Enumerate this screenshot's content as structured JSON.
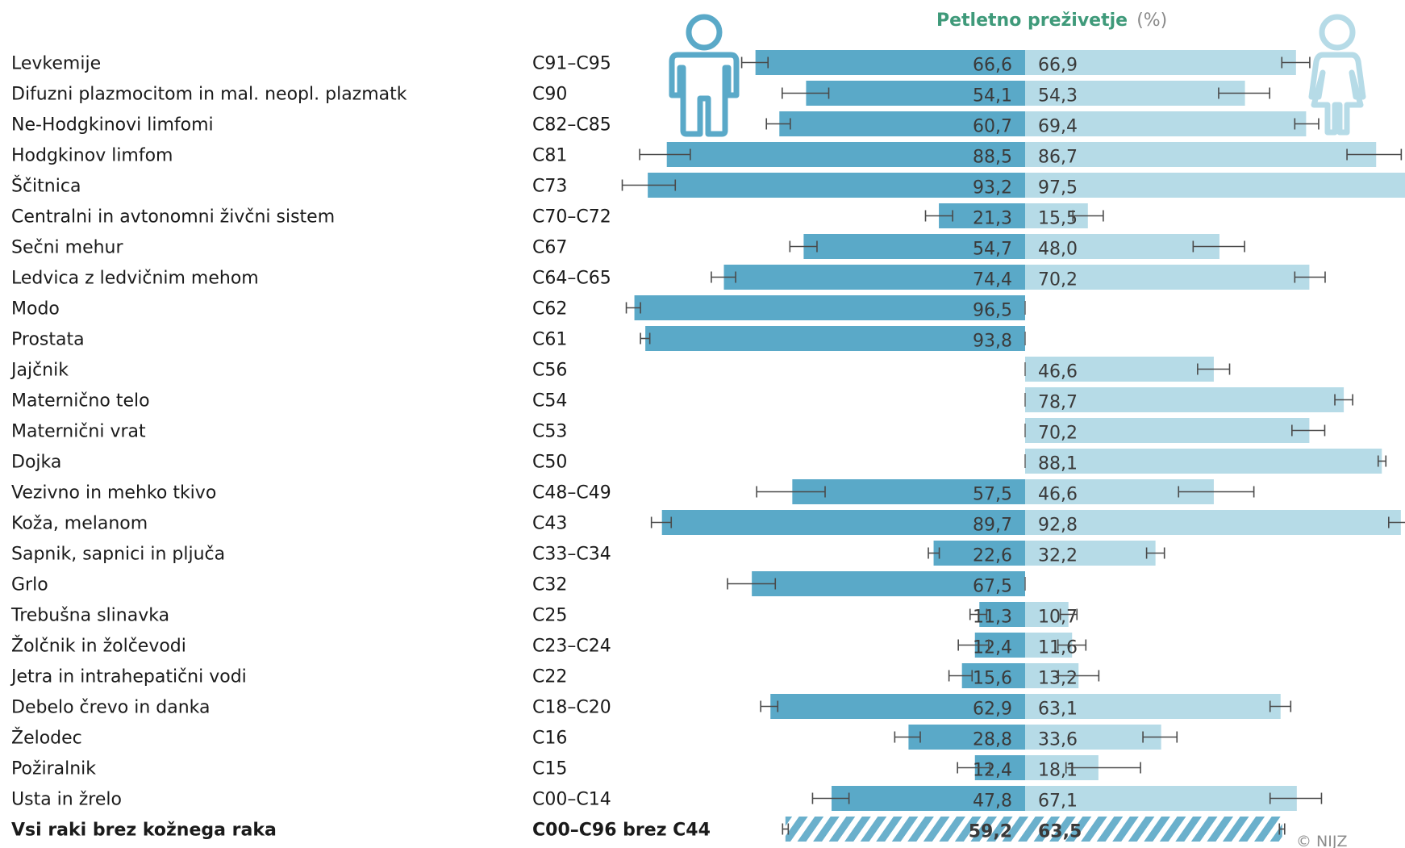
{
  "title": {
    "main": "Petletno preživetje",
    "unit": "(%)"
  },
  "copyright": "© NIJZ",
  "colors": {
    "men": "#5aa9c8",
    "women": "#b6dbe7",
    "hatch": "#6ab0cc",
    "title": "#3f9a7a",
    "icon_men": "#5aa9c8",
    "icon_women": "#b6dbe7"
  },
  "icons": {
    "men": "man-icon",
    "women": "woman-icon"
  },
  "chart_data": {
    "type": "bar",
    "orientation": "horizontal-diverging",
    "xlim": [
      0,
      100
    ],
    "series": [
      {
        "name": "moški",
        "key": "men"
      },
      {
        "name": "ženske",
        "key": "women"
      }
    ],
    "rows": [
      {
        "label": "Levkemije",
        "code": "C91–C95",
        "men": 66.6,
        "men_label": "66,6",
        "men_ci": [
          63.5,
          70.0
        ],
        "women": 66.9,
        "women_label": "66,9",
        "women_ci": [
          63.4,
          70.3
        ]
      },
      {
        "label": "Difuzni plazmocitom in mal. neopl. plazmatk",
        "code": "C90",
        "men": 54.1,
        "men_label": "54,1",
        "men_ci": [
          48.5,
          60.0
        ],
        "women": 54.3,
        "women_label": "54,3",
        "women_ci": [
          47.8,
          60.4
        ]
      },
      {
        "label": "Ne-Hodgkinovi limfomi",
        "code": "C82–C85",
        "men": 60.7,
        "men_label": "60,7",
        "men_ci": [
          58.0,
          63.9
        ],
        "women": 69.4,
        "women_label": "69,4",
        "women_ci": [
          66.6,
          72.5
        ]
      },
      {
        "label": "Hodgkinov limfom",
        "code": "C81",
        "men": 88.5,
        "men_label": "88,5",
        "men_ci": [
          82.7,
          95.2
        ],
        "women": 86.7,
        "women_label": "86,7",
        "women_ci": [
          79.5,
          92.9
        ]
      },
      {
        "label": "Ščitnica",
        "code": "C73",
        "men": 93.2,
        "men_label": "93,2",
        "men_ci": [
          86.4,
          99.5
        ],
        "women": 97.5,
        "women_label": "97,5",
        "women_ci": [
          95.0,
          100.0
        ]
      },
      {
        "label": "Centralni in avtonomni živčni sistem",
        "code": "C70–C72",
        "men": 21.3,
        "men_label": "21,3",
        "men_ci": [
          17.9,
          24.6
        ],
        "women": 15.5,
        "women_label": "15,5",
        "women_ci": [
          11.8,
          19.3
        ]
      },
      {
        "label": "Sečni mehur",
        "code": "C67",
        "men": 54.7,
        "men_label": "54,7",
        "men_ci": [
          51.4,
          58.1
        ],
        "women": 48.0,
        "women_label": "48,0",
        "women_ci": [
          41.5,
          54.2
        ]
      },
      {
        "label": "Ledvica z ledvičnim mehom",
        "code": "C64–C65",
        "men": 74.4,
        "men_label": "74,4",
        "men_ci": [
          71.5,
          77.5
        ],
        "women": 70.2,
        "women_label": "70,2",
        "women_ci": [
          66.6,
          74.1
        ]
      },
      {
        "label": "Modo",
        "code": "C62",
        "men": 96.5,
        "men_label": "96,5",
        "men_ci": [
          95.0,
          98.5
        ]
      },
      {
        "label": "Prostata",
        "code": "C61",
        "men": 93.8,
        "men_label": "93,8",
        "men_ci": [
          92.7,
          95.0
        ]
      },
      {
        "label": "Jajčnik",
        "code": "C56",
        "women": 46.6,
        "women_label": "46,6",
        "women_ci": [
          42.6,
          50.5
        ]
      },
      {
        "label": "Maternično telo",
        "code": "C54",
        "women": 78.7,
        "women_label": "78,7",
        "women_ci": [
          76.5,
          80.9
        ]
      },
      {
        "label": "Maternični vrat",
        "code": "C53",
        "women": 70.2,
        "women_label": "70,2",
        "women_ci": [
          65.9,
          74.0
        ]
      },
      {
        "label": "Dojka",
        "code": "C50",
        "women": 88.1,
        "women_label": "88,1",
        "women_ci": [
          87.2,
          89.1
        ]
      },
      {
        "label": "Vezivno in mehko tkivo",
        "code": "C48–C49",
        "men": 57.5,
        "men_label": "57,5",
        "men_ci": [
          49.4,
          66.3
        ],
        "women": 46.6,
        "women_label": "46,6",
        "women_ci": [
          37.9,
          56.5
        ]
      },
      {
        "label": "Koža, melanom",
        "code": "C43",
        "men": 89.7,
        "men_label": "89,7",
        "men_ci": [
          87.4,
          92.3
        ],
        "women": 92.8,
        "women_label": "92,8",
        "women_ci": [
          89.8,
          95.2
        ]
      },
      {
        "label": "Sapnik, sapnici in pljuča",
        "code": "C33–C34",
        "men": 22.6,
        "men_label": "22,6",
        "men_ci": [
          21.2,
          23.9
        ],
        "women": 32.2,
        "women_label": "32,2",
        "women_ci": [
          30.0,
          34.4
        ]
      },
      {
        "label": "Grlo",
        "code": "C32",
        "men": 67.5,
        "men_label": "67,5",
        "men_ci": [
          61.7,
          73.5
        ]
      },
      {
        "label": "Trebušna slinavka",
        "code": "C25",
        "men": 11.3,
        "men_label": "11,3",
        "men_ci": [
          9.5,
          13.6
        ],
        "women": 10.7,
        "women_label": "10,7",
        "women_ci": [
          8.7,
          12.8
        ]
      },
      {
        "label": "Žolčnik in žolčevodi",
        "code": "C23–C24",
        "men": 12.4,
        "men_label": "12,4",
        "men_ci": [
          9.0,
          16.5
        ],
        "women": 11.6,
        "women_label": "11,6",
        "women_ci": [
          8.1,
          15.0
        ]
      },
      {
        "label": "Jetra in intrahepatični vodi",
        "code": "C22",
        "men": 15.6,
        "men_label": "15,6",
        "men_ci": [
          13.1,
          18.8
        ],
        "women": 13.2,
        "women_label": "13,2",
        "women_ci": [
          8.2,
          18.2
        ]
      },
      {
        "label": "Debelo črevo in danka",
        "code": "C18–C20",
        "men": 62.9,
        "men_label": "62,9",
        "men_ci": [
          61.1,
          65.3
        ],
        "women": 63.1,
        "women_label": "63,1",
        "women_ci": [
          60.5,
          65.6
        ]
      },
      {
        "label": "Želodec",
        "code": "C16",
        "men": 28.8,
        "men_label": "28,8",
        "men_ci": [
          25.9,
          32.2
        ],
        "women": 33.6,
        "women_label": "33,6",
        "women_ci": [
          29.1,
          37.5
        ]
      },
      {
        "label": "Požiralnik",
        "code": "C15",
        "men": 12.4,
        "men_label": "12,4",
        "men_ci": [
          8.7,
          16.7
        ],
        "women": 18.1,
        "women_label": "18,1",
        "women_ci": [
          10.1,
          28.5
        ]
      },
      {
        "label": "Usta in žrelo",
        "code": "C00–C14",
        "men": 47.8,
        "men_label": "47,8",
        "men_ci": [
          43.5,
          52.5
        ],
        "women": 67.1,
        "women_label": "67,1",
        "women_ci": [
          60.5,
          73.2
        ]
      },
      {
        "label": "Vsi raki brez kožnega raka",
        "code": "C00–C96 brez C44",
        "men": 59.2,
        "men_label": "59,2",
        "men_ci": [
          58.5,
          59.9
        ],
        "women": 63.5,
        "women_label": "63,5",
        "women_ci": [
          62.8,
          64.1
        ],
        "bold": true,
        "hatched": true
      }
    ]
  }
}
